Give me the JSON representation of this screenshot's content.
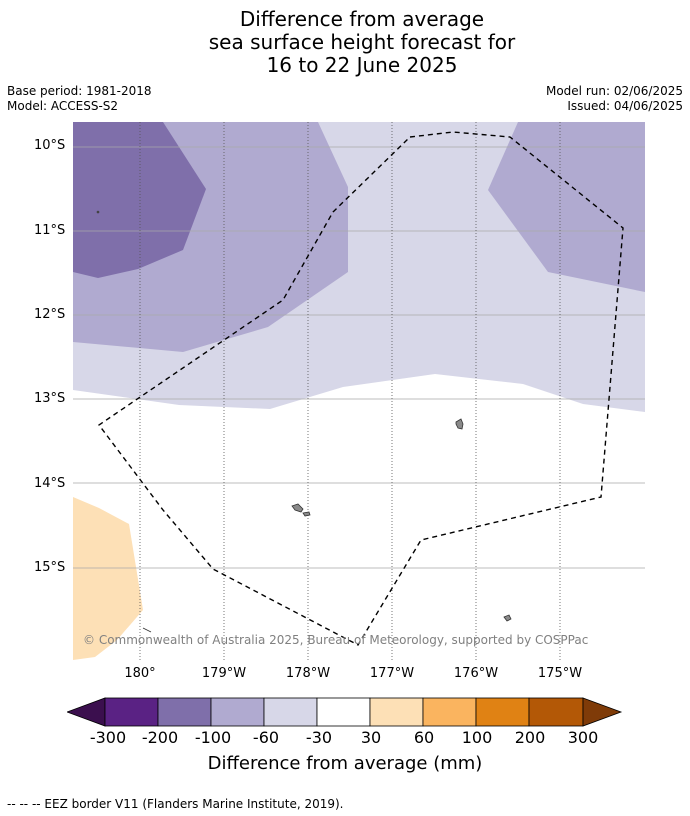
{
  "title": {
    "line1": "Difference from average",
    "line2": "sea surface height forecast for",
    "line3": "16 to 22 June 2025"
  },
  "meta": {
    "base_period": "Base period: 1981-2018",
    "model": "Model: ACCESS-S2",
    "model_run": "Model run: 02/06/2025",
    "issued": "Issued: 04/06/2025"
  },
  "map": {
    "lat_labels": [
      "10°S",
      "11°S",
      "12°S",
      "13°S",
      "14°S",
      "15°S"
    ],
    "lon_labels": [
      "180°",
      "179°W",
      "178°W",
      "177°W",
      "176°W",
      "175°W"
    ],
    "lat_range": [
      -16.1,
      -9.7
    ],
    "lon_range": [
      179.2,
      185.8
    ],
    "copyright": "© Commonwealth of Australia 2025, Bureau of Meteorology, supported by COSPPac"
  },
  "colorbar": {
    "title": "Difference from average (mm)",
    "labels": [
      "-300",
      "-200",
      "-100",
      "-60",
      "-30",
      "30",
      "60",
      "100",
      "200",
      "300"
    ],
    "colors": {
      "extend_low": "#3b0f4e",
      "c1": "#5a2284",
      "c2": "#7f6faa",
      "c3": "#b0aad0",
      "c4": "#d7d7e8",
      "c5": "#ffffff",
      "c6": "#fde0b6",
      "c7": "#fab45f",
      "c8": "#e08214",
      "c9": "#b35806",
      "extend_high": "#7f3b08"
    }
  },
  "footer": "-- -- -- EEZ border V11 (Flanders Marine Institute, 2019)."
}
